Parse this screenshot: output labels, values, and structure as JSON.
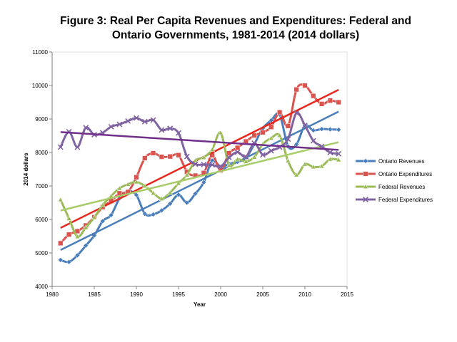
{
  "chart_data": {
    "type": "line",
    "title_line1": "Figure 3: Real Per Capita Revenues and Expenditures: Federal and",
    "title_line2": "Ontario Governments, 1981-2014 (2014 dollars)",
    "xlabel": "Year",
    "ylabel": "2014 dollars",
    "xlim": [
      1980,
      2015
    ],
    "ylim": [
      4000,
      11000
    ],
    "x_ticks": [
      1980,
      1985,
      1990,
      1995,
      2000,
      2005,
      2010,
      2015
    ],
    "y_ticks": [
      4000,
      5000,
      6000,
      7000,
      8000,
      9000,
      10000,
      11000
    ],
    "grid": false,
    "legend_position": "right",
    "x": [
      1981,
      1982,
      1983,
      1984,
      1985,
      1986,
      1987,
      1988,
      1989,
      1990,
      1991,
      1992,
      1993,
      1994,
      1995,
      1996,
      1997,
      1998,
      1999,
      2000,
      2001,
      2002,
      2003,
      2004,
      2005,
      2006,
      2007,
      2008,
      2009,
      2010,
      2011,
      2012,
      2013,
      2014
    ],
    "series": [
      {
        "name": "Ontario Revenues",
        "color": "#4a7ebb",
        "trend_color": "#4a7ebb",
        "marker": "diamond",
        "values": [
          4790,
          4730,
          4930,
          5220,
          5520,
          5950,
          6130,
          6630,
          6840,
          6730,
          6170,
          6150,
          6270,
          6470,
          6740,
          6500,
          6770,
          7110,
          7760,
          7570,
          7660,
          7720,
          7840,
          8250,
          8720,
          8960,
          9130,
          8180,
          8240,
          8800,
          8660,
          8700,
          8690,
          8680
        ]
      },
      {
        "name": "Ontario Expenditures",
        "color": "#d9534f",
        "trend_color": "#e8271e",
        "marker": "square",
        "values": [
          5290,
          5550,
          5650,
          5820,
          6070,
          6370,
          6550,
          6780,
          6820,
          7260,
          7830,
          7980,
          7870,
          7880,
          7920,
          7420,
          7310,
          7390,
          7920,
          7470,
          7980,
          8140,
          8330,
          8510,
          8600,
          8760,
          9200,
          8790,
          9880,
          10000,
          9690,
          9450,
          9550,
          9500
        ]
      },
      {
        "name": "Federal Revenues",
        "color": "#9bbb59",
        "trend_color": "#a8cc6a",
        "marker": "triangle",
        "values": [
          6590,
          6030,
          5490,
          5760,
          6060,
          6430,
          6700,
          6930,
          7050,
          7120,
          7000,
          6790,
          6620,
          6800,
          7080,
          7330,
          7760,
          7850,
          8090,
          8590,
          7620,
          7800,
          7730,
          7860,
          8250,
          8430,
          8510,
          7750,
          7330,
          7650,
          7570,
          7590,
          7800,
          7780
        ]
      },
      {
        "name": "Federal Expenditures",
        "color": "#8064a2",
        "trend_color": "#70308a",
        "marker": "x",
        "values": [
          8160,
          8620,
          8160,
          8740,
          8530,
          8590,
          8770,
          8840,
          8940,
          9030,
          8920,
          8970,
          8670,
          8720,
          8580,
          7880,
          7650,
          7640,
          7630,
          7580,
          7850,
          8010,
          7870,
          8280,
          7930,
          8050,
          8160,
          8400,
          9180,
          8810,
          8350,
          8180,
          8000,
          7960
        ]
      }
    ]
  }
}
